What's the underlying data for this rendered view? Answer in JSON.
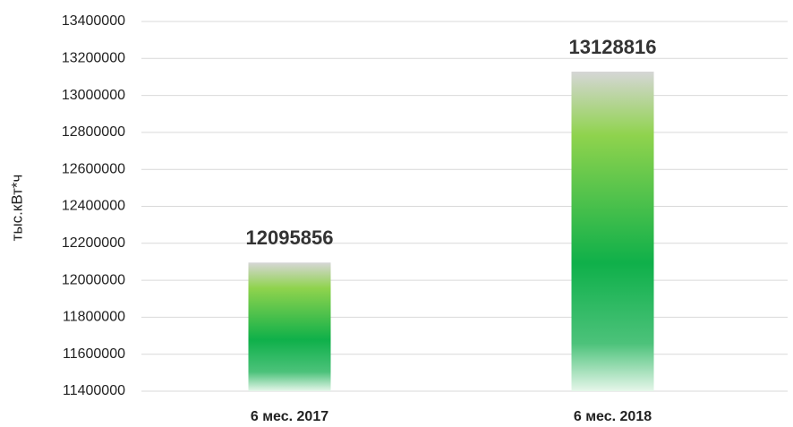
{
  "chart_data": {
    "type": "bar",
    "y_label": "тыс.кВт*ч",
    "categories": [
      "6 мес. 2017",
      "6 мес. 2018"
    ],
    "values": [
      12095856,
      13128816
    ],
    "color": "#1cb14c",
    "ylim": [
      11400000,
      13400000
    ],
    "yticks": [
      11400000,
      11600000,
      11800000,
      12000000,
      12200000,
      12400000,
      12600000,
      12800000,
      13000000,
      13200000,
      13400000
    ],
    "grid": true
  }
}
